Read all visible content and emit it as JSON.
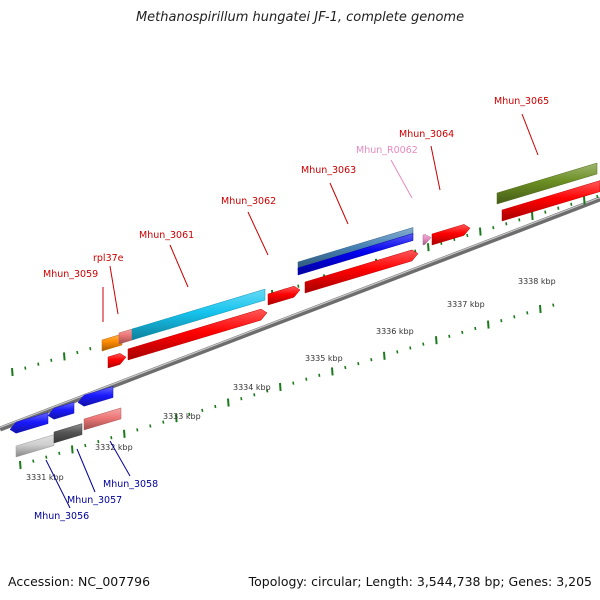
{
  "title": "Methanospirillum hungatei JF-1, complete genome",
  "footer": {
    "accession": "Accession: NC_007796",
    "topology": "Topology: circular; Length: 3,544,738 bp; Genes: 3,205"
  },
  "colors": {
    "backbone": "#888888",
    "tick": "#1b7a1b",
    "label_red": "#cc0000",
    "label_blue": "#000099",
    "label_pink": "#e58ac0"
  },
  "axis_labels": [
    "3331 kbp",
    "3332 kbp",
    "3333 kbp",
    "3334 kbp",
    "3335 kbp",
    "3336 kbp",
    "3337 kbp",
    "3338 kbp"
  ],
  "genes": [
    {
      "label": "Mhun_3056",
      "color": "#cfcfcf",
      "label_color": "blue"
    },
    {
      "label": "Mhun_3057",
      "color": "#555555",
      "label_color": "blue"
    },
    {
      "label": "Mhun_3058",
      "color": "#ee7777",
      "label_color": "blue"
    },
    {
      "label": "Mhun_3059",
      "color": "#ff8c00",
      "label_color": "red"
    },
    {
      "label": "rpl37e",
      "color": "#ee7777",
      "label_color": "red"
    },
    {
      "label": "Mhun_3061",
      "color": "#16c4ee",
      "label_color": "red"
    },
    {
      "label": "Mhun_3062",
      "color": "#ff0000",
      "label_color": "red"
    },
    {
      "label": "Mhun_3063",
      "color": "#4682b4",
      "label_color": "red"
    },
    {
      "label": "Mhun_R0062",
      "color": "#e58ac0",
      "label_color": "pink"
    },
    {
      "label": "Mhun_3064",
      "color": "#ff0000",
      "label_color": "red"
    },
    {
      "label": "Mhun_3065",
      "color": "#6b8e23",
      "label_color": "red"
    }
  ]
}
